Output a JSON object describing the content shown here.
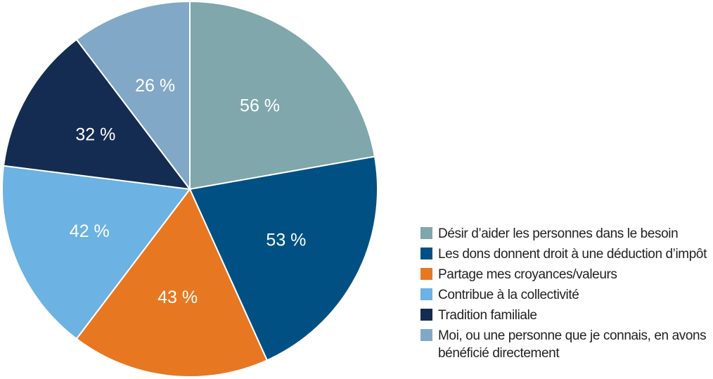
{
  "chart_data": {
    "type": "pie",
    "slices": [
      {
        "label": "Désir d’aider les personnes dans le besoin",
        "value": 56,
        "value_label": "56 %",
        "color": "#7fa7ac"
      },
      {
        "label": "Les dons donnent droit à une déduction d’impôt",
        "value": 53,
        "value_label": "53 %",
        "color": "#005083"
      },
      {
        "label": "Partage mes croyances/valeurs",
        "value": 43,
        "value_label": "43 %",
        "color": "#e87722"
      },
      {
        "label": "Contribue à la collectivité",
        "value": 42,
        "value_label": "42 %",
        "color": "#6cb2e3"
      },
      {
        "label": "Tradition familiale",
        "value": 32,
        "value_label": "32 %",
        "color": "#142c52"
      },
      {
        "label": "Moi, ou une personne que je connais, en avons bénéficié directement",
        "value": 26,
        "value_label": "26 %",
        "color": "#82a8c8"
      }
    ],
    "start": "12 o'clock",
    "direction": "clockwise",
    "legend_position": "bottom-right"
  }
}
